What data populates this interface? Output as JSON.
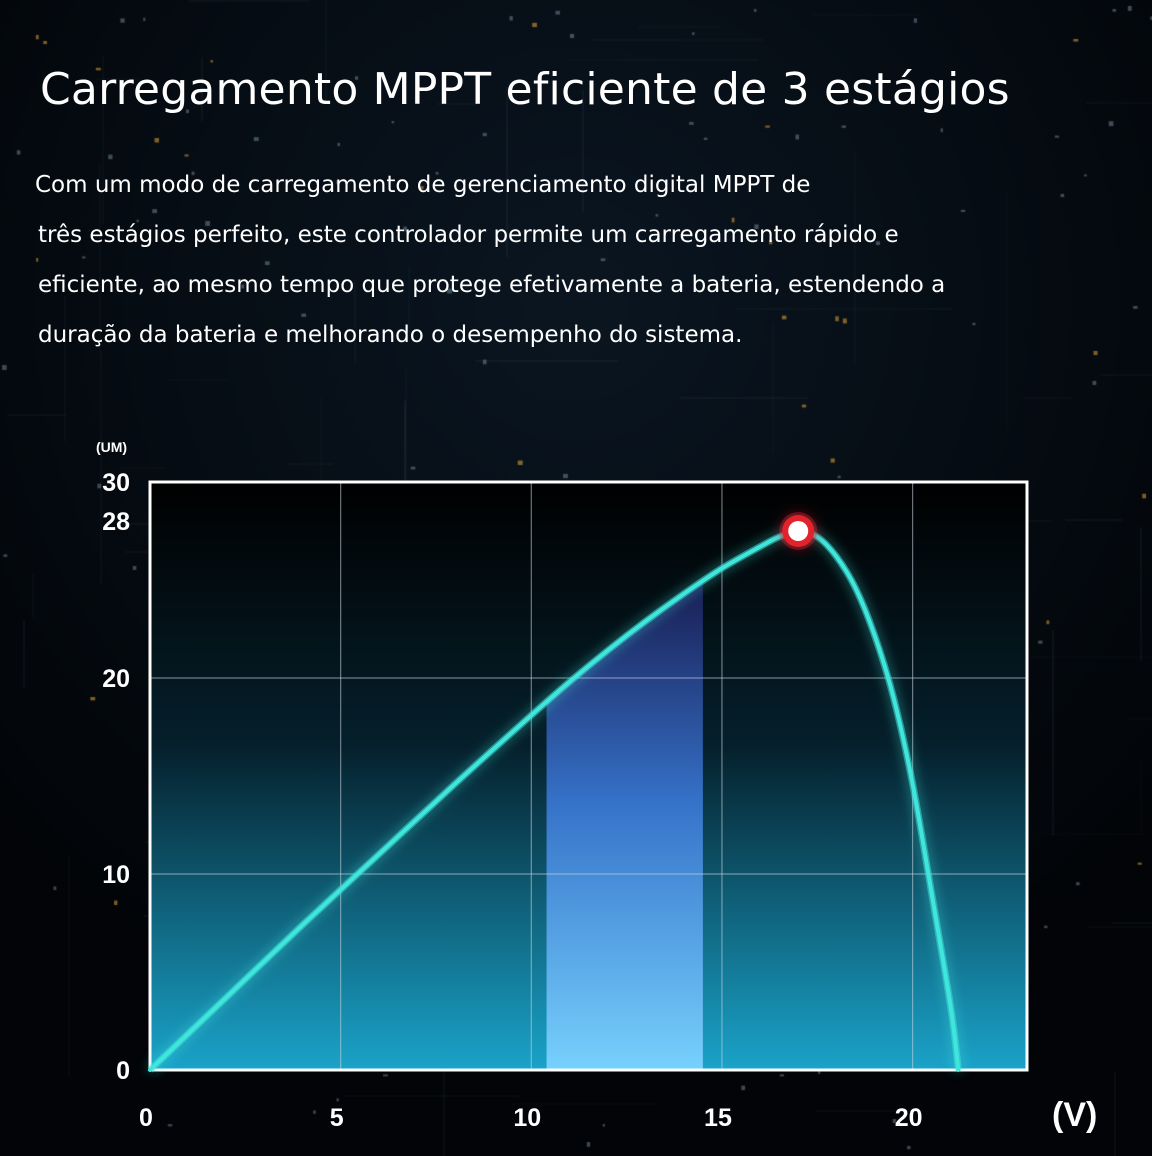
{
  "heading": "Carregamento MPPT eficiente de 3 estágios",
  "description": [
    "Com um modo de carregamento de gerenciamento digital MPPT de",
    "três estágios perfeito, este controlador permite um carregamento rápido e",
    "eficiente, ao mesmo tempo que protege efetivamente a bateria, estendendo a",
    "duração da bateria e melhorando o desempenho do sistema."
  ],
  "colors": {
    "curve": "#3fe6dc",
    "peak_marker": "#e0232c",
    "highlight_band": "#5aa9ff",
    "grid": "#c8d2dc"
  },
  "chart_data": {
    "type": "line",
    "ylabel_unit": "(UM)",
    "xlabel_unit": "(V)",
    "xlim": [
      0,
      23
    ],
    "ylim": [
      0,
      30
    ],
    "x_ticks": [
      "0",
      "5",
      "10",
      "15",
      "20"
    ],
    "x_tick_values": [
      0,
      5,
      10,
      15,
      20
    ],
    "y_ticks": [
      "0",
      "10",
      "20",
      "28",
      "30"
    ],
    "y_tick_values": [
      0,
      10,
      20,
      28,
      30
    ],
    "x_grid": [
      5,
      10,
      15,
      20
    ],
    "y_grid": [
      10,
      20
    ],
    "grid": true,
    "series": [
      {
        "x": [
          0,
          2,
          4,
          6,
          8,
          10,
          11,
          12,
          13,
          14,
          15,
          16,
          16.5,
          17,
          17.5,
          18,
          18.5,
          19,
          19.5,
          20,
          20.5,
          21,
          21.2
        ],
        "y": [
          0,
          3.7,
          7.4,
          11.0,
          14.6,
          18.1,
          19.8,
          21.4,
          22.9,
          24.3,
          25.6,
          26.7,
          27.2,
          27.5,
          27.2,
          26.2,
          24.6,
          22.2,
          19.0,
          14.6,
          9.0,
          3.2,
          0
        ]
      }
    ],
    "peak": {
      "x": 17,
      "y": 27.5
    },
    "highlight_range": [
      10.4,
      14.5
    ]
  }
}
